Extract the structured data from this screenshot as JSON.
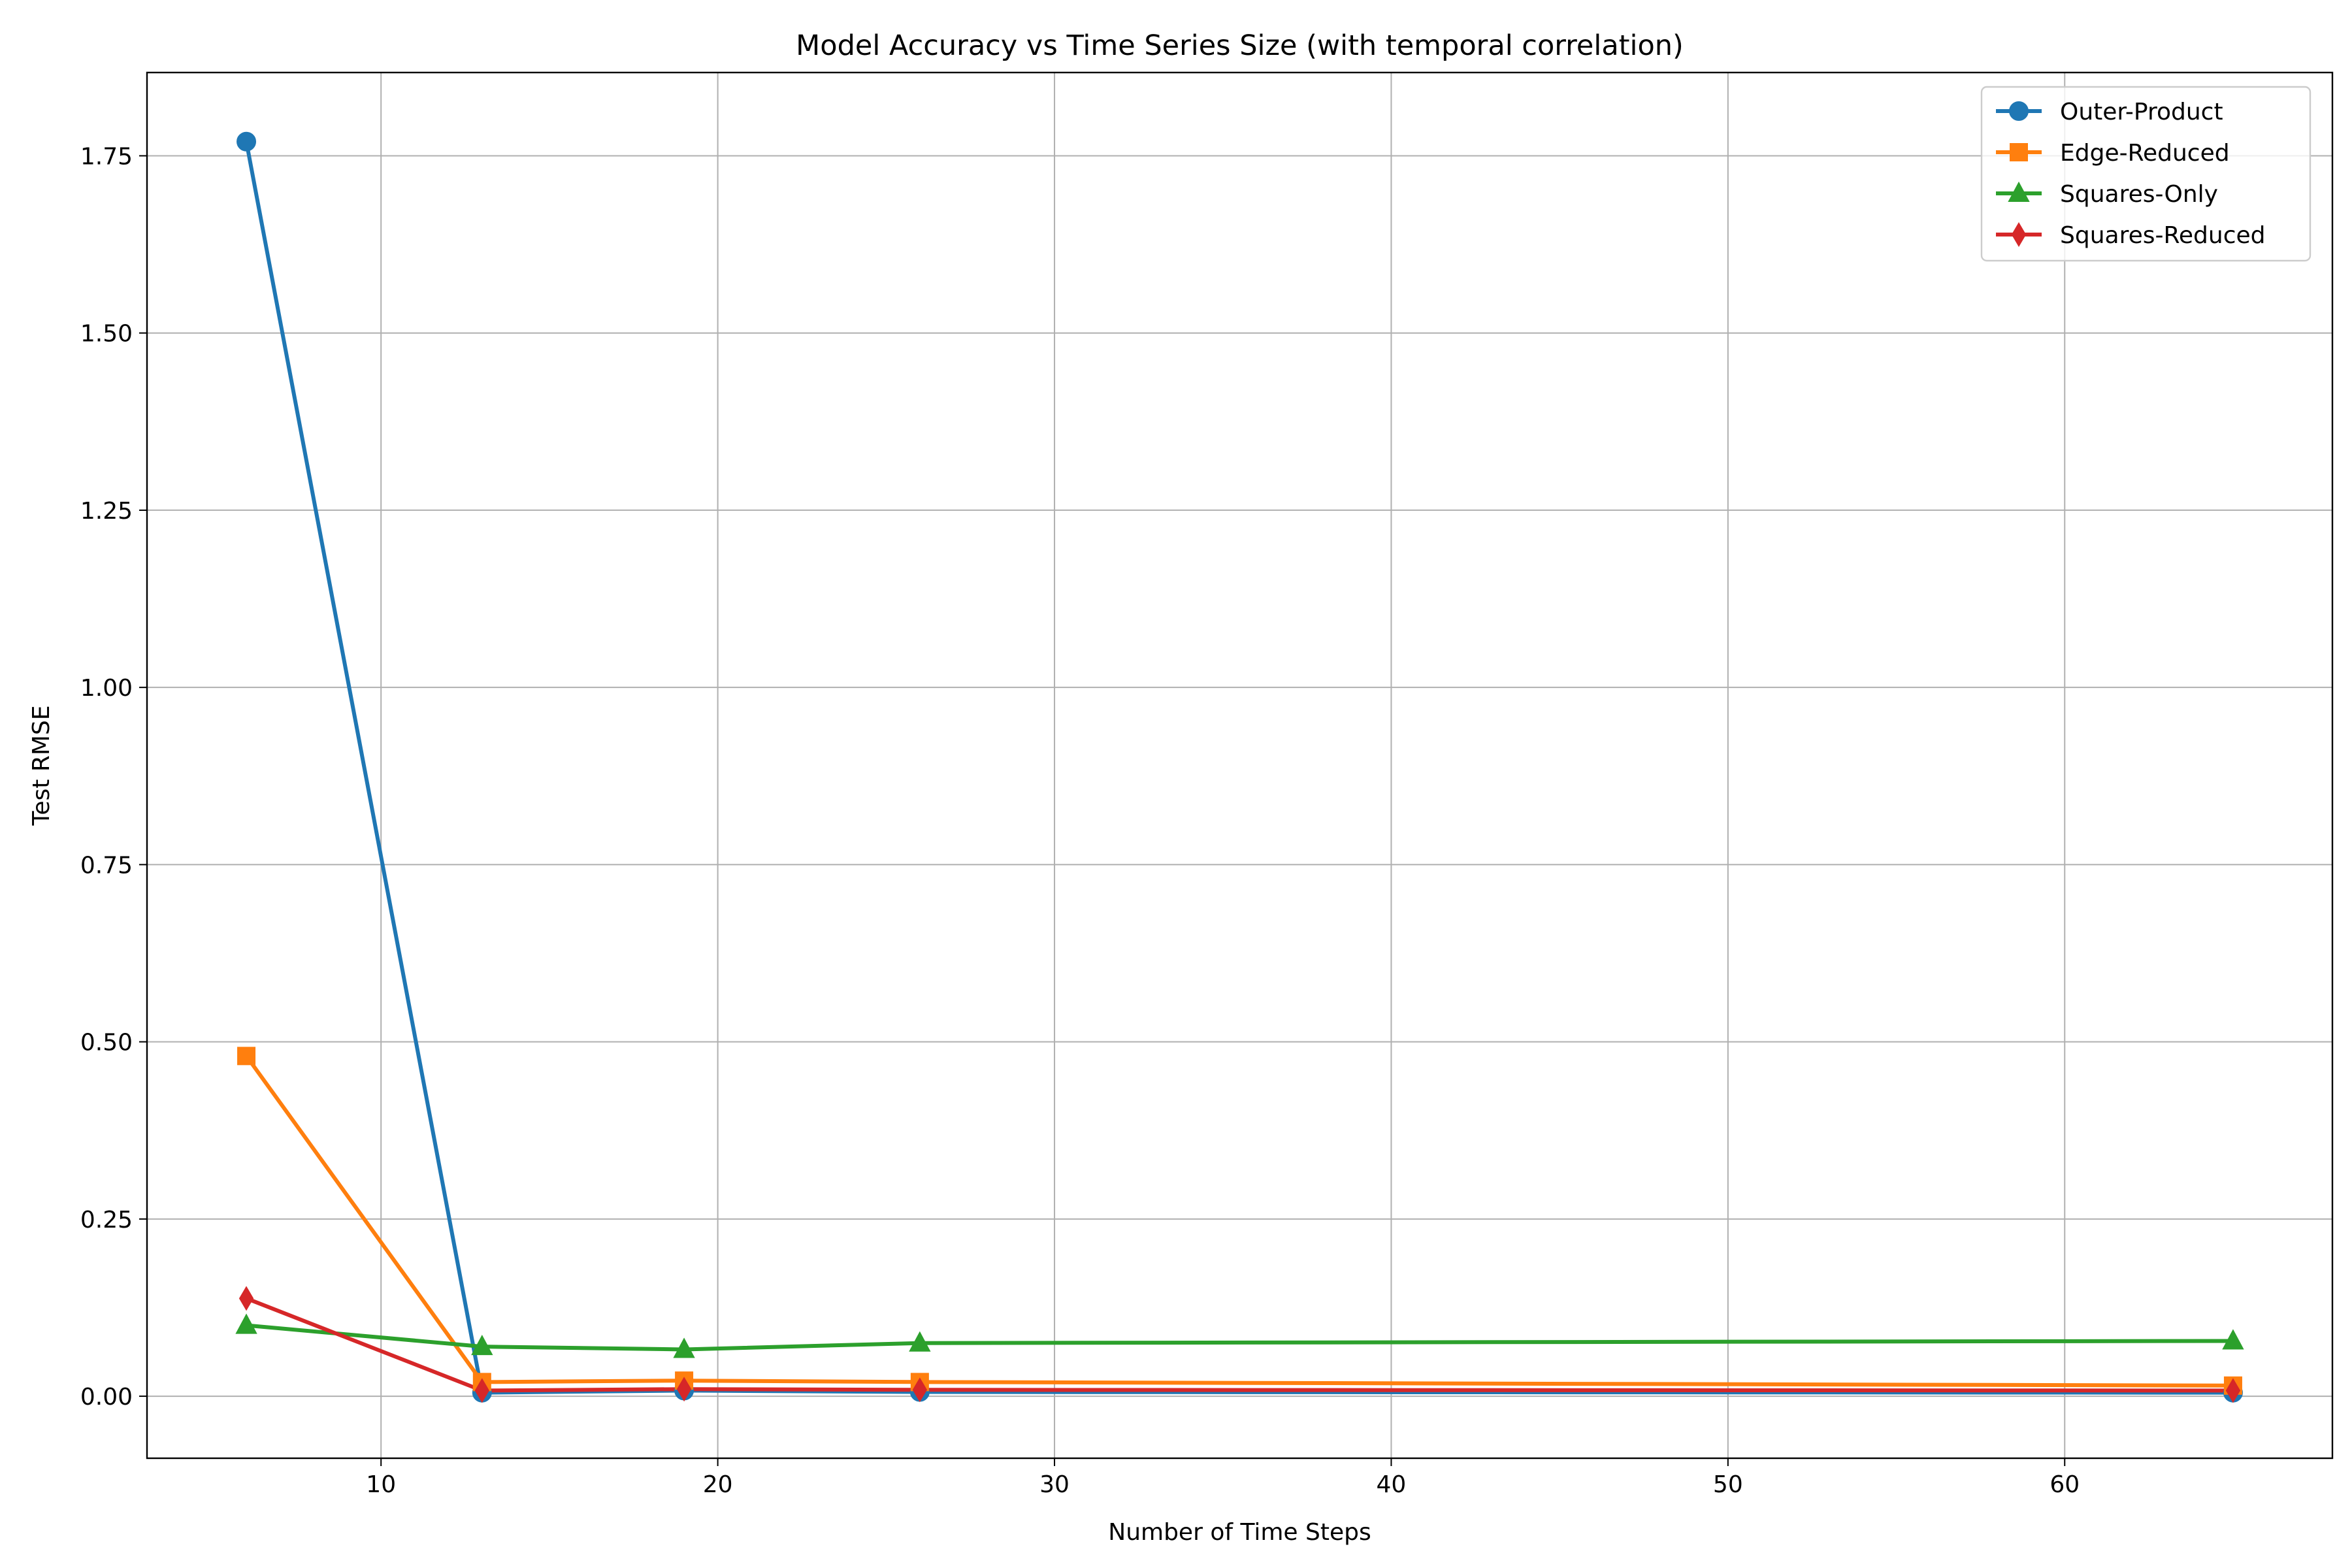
{
  "chart_data": {
    "type": "line",
    "title": "Model Accuracy vs Time Series Size (with temporal correlation)",
    "xlabel": "Number of Time Steps",
    "ylabel": "Test RMSE",
    "xlim": [
      3.05,
      67.95
    ],
    "ylim": [
      -0.0875,
      1.8675
    ],
    "xticks": [
      10,
      20,
      30,
      40,
      50,
      60
    ],
    "xtick_labels": [
      "10",
      "20",
      "30",
      "40",
      "50",
      "60"
    ],
    "yticks": [
      0.0,
      0.25,
      0.5,
      0.75,
      1.0,
      1.25,
      1.5,
      1.75
    ],
    "ytick_labels": [
      "0.00",
      "0.25",
      "0.50",
      "0.75",
      "1.00",
      "1.25",
      "1.50",
      "1.75"
    ],
    "grid": true,
    "legend_position": "top-right",
    "x": [
      6,
      13,
      19,
      26,
      65
    ],
    "series": [
      {
        "name": "Outer-Product",
        "color": "#1f77b4",
        "marker": "circle",
        "values": [
          1.77,
          0.005,
          0.008,
          0.006,
          0.005
        ]
      },
      {
        "name": "Edge-Reduced",
        "color": "#ff7f0e",
        "marker": "square",
        "values": [
          0.48,
          0.02,
          0.022,
          0.02,
          0.015
        ]
      },
      {
        "name": "Squares-Only",
        "color": "#2ca02c",
        "marker": "triangle",
        "values": [
          0.1,
          0.07,
          0.066,
          0.075,
          0.078
        ]
      },
      {
        "name": "Squares-Reduced",
        "color": "#d62728",
        "marker": "diamond",
        "values": [
          0.138,
          0.008,
          0.01,
          0.009,
          0.008
        ]
      }
    ]
  }
}
